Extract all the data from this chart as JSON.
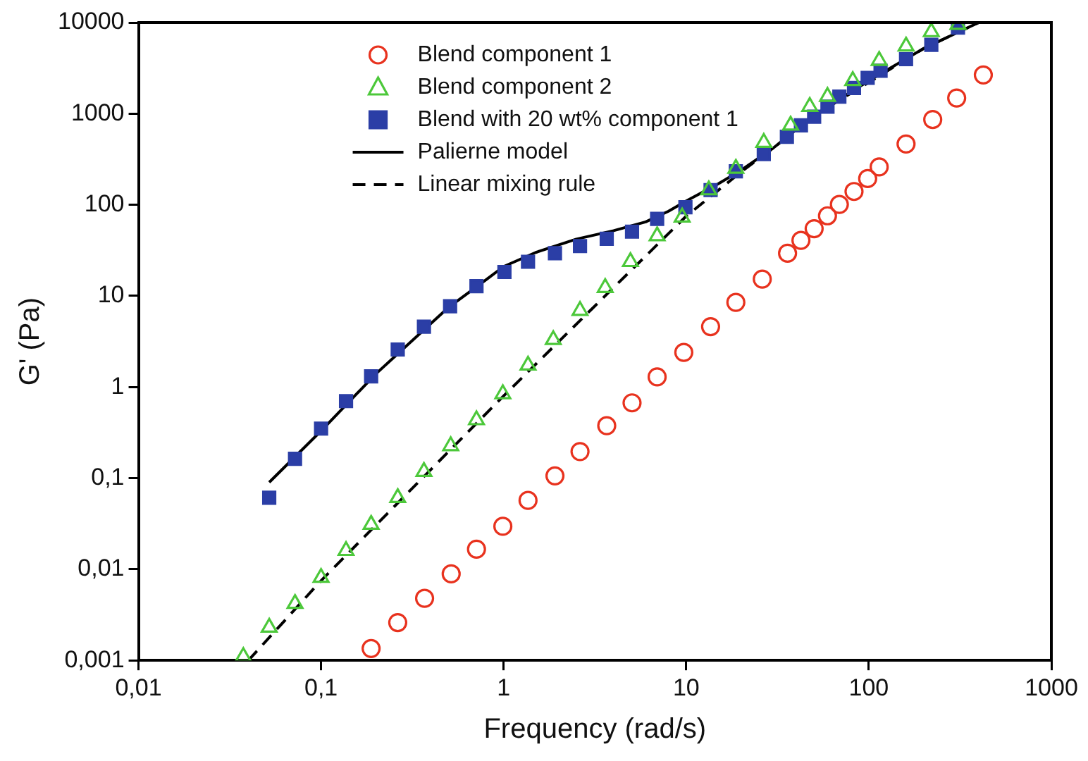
{
  "chart_data": {
    "type": "scatter",
    "xlabel": "Frequency (rad/s)",
    "ylabel": "G' (Pa)",
    "log": "xy",
    "grid": false,
    "legend": "top left",
    "xlim": [
      0.01,
      1000
    ],
    "ylim": [
      0.001,
      10000
    ],
    "xticks": [
      {
        "value": 0.01,
        "label": "0,01"
      },
      {
        "value": 0.1,
        "label": "0,1"
      },
      1,
      10,
      100,
      1000
    ],
    "yticks": [
      {
        "value": 0.001,
        "label": "0,001"
      },
      {
        "value": 0.01,
        "label": "0,01"
      },
      {
        "value": 0.1,
        "label": "0,1"
      },
      1,
      10,
      100,
      1000,
      10000
    ],
    "series": [
      {
        "name": "Blend component 1",
        "marker": "circle",
        "color": "#e8321e",
        "x": [
          0.188,
          0.263,
          0.369,
          0.516,
          0.71,
          0.99,
          1.36,
          1.91,
          2.62,
          3.67,
          5.05,
          6.93,
          9.7,
          13.6,
          18.7,
          26.1,
          35.9,
          42.5,
          50.2,
          59.4,
          69,
          83,
          98.6,
          114,
          160,
          224,
          303,
          424
        ],
        "values": [
          0.00135,
          0.0026,
          0.0048,
          0.0089,
          0.0166,
          0.0296,
          0.057,
          0.106,
          0.196,
          0.377,
          0.67,
          1.29,
          2.4,
          4.6,
          8.5,
          15.3,
          29.4,
          40.7,
          54.6,
          75.7,
          101,
          140,
          194,
          260,
          465,
          861,
          1485,
          2660
        ]
      },
      {
        "name": "Blend component 2",
        "marker": "triangle",
        "color": "#4cc83a",
        "x": [
          0.0375,
          0.052,
          0.072,
          0.1,
          0.137,
          0.188,
          0.263,
          0.366,
          0.513,
          0.71,
          0.99,
          1.36,
          1.87,
          2.62,
          3.6,
          4.95,
          6.93,
          9.5,
          13.3,
          18.7,
          26.6,
          37.3,
          47.5,
          59.4,
          81.7,
          114,
          160,
          220,
          308
        ],
        "values": [
          0.0011,
          0.0023,
          0.0042,
          0.0081,
          0.016,
          0.031,
          0.061,
          0.118,
          0.226,
          0.435,
          0.84,
          1.73,
          3.3,
          6.9,
          12.3,
          23.7,
          45.5,
          73,
          145,
          250,
          482,
          745,
          1195,
          1540,
          2300,
          3820,
          5500,
          7900,
          9500
        ]
      },
      {
        "name": "Blend with 20 wt% component 1",
        "marker": "square",
        "color": "#2b3ea6",
        "x": [
          0.052,
          0.072,
          0.1,
          0.137,
          0.188,
          0.263,
          0.366,
          0.509,
          0.71,
          1.01,
          1.36,
          1.91,
          2.62,
          3.67,
          5.05,
          6.93,
          9.9,
          13.6,
          18.7,
          26.6,
          35.6,
          42.5,
          50.2,
          59.4,
          69,
          83,
          98.6,
          116,
          160,
          220,
          308
        ],
        "values": [
          0.061,
          0.163,
          0.35,
          0.7,
          1.31,
          2.58,
          4.6,
          7.7,
          12.8,
          18.3,
          23.7,
          29.4,
          35.2,
          42.3,
          50.7,
          70,
          94,
          145,
          233,
          360,
          557,
          745,
          927,
          1195,
          1540,
          1915,
          2470,
          2960,
          3960,
          5700,
          8800
        ]
      },
      {
        "name": "Palierne model",
        "type": "line",
        "marker": "none",
        "line_style": "solid",
        "color": "#000000",
        "x": [
          0.052,
          0.1,
          0.2,
          0.5,
          0.8,
          1,
          1.5,
          2.5,
          4,
          6,
          8,
          10,
          15,
          20,
          30,
          50,
          100,
          200,
          400
        ],
        "values": [
          0.09,
          0.33,
          1.4,
          7.5,
          15,
          21,
          30,
          42,
          52,
          65,
          85,
          110,
          170,
          240,
          420,
          950,
          2300,
          5200,
          10000
        ]
      },
      {
        "name": "Linear mixing rule",
        "type": "line",
        "marker": "none",
        "line_style": "dashed",
        "color": "#000000",
        "x": [
          0.04,
          0.1,
          1,
          3,
          10,
          20,
          30,
          50,
          100,
          200,
          400
        ],
        "values": [
          0.001,
          0.0075,
          0.8,
          7,
          75,
          230,
          420,
          950,
          2200,
          5200,
          10000
        ]
      }
    ]
  }
}
